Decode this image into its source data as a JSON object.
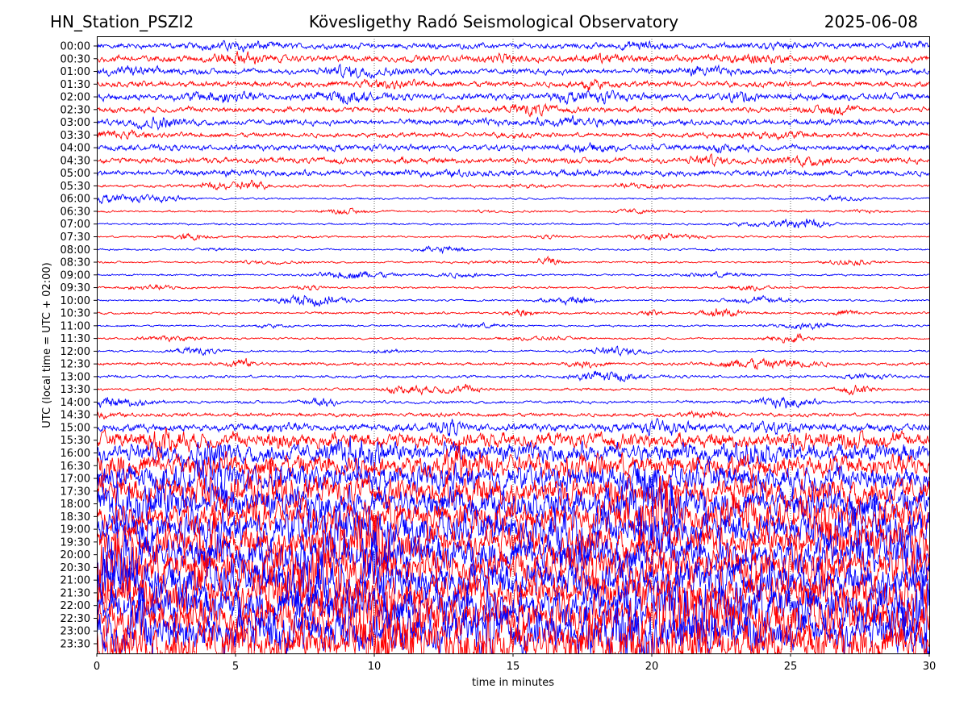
{
  "header": {
    "station": "HN_Station_PSZI2",
    "observatory": "Kövesligethy Radó Seismological Observatory",
    "date": "2025-06-08"
  },
  "chart_data": {
    "type": "line",
    "subtype": "seismogram-dayplot",
    "xlabel": "time in minutes",
    "ylabel": "UTC (local time = UTC + 02:00)",
    "xlim": [
      0,
      30
    ],
    "xticks": [
      "0",
      "5",
      "10",
      "15",
      "20",
      "25",
      "30"
    ],
    "grid": "vertical dotted at 5-minute intervals",
    "colors": [
      "#0000ff",
      "#ff0000"
    ],
    "rows": [
      "00:00",
      "00:30",
      "01:00",
      "01:30",
      "02:00",
      "02:30",
      "03:00",
      "03:30",
      "04:00",
      "04:30",
      "05:00",
      "05:30",
      "06:00",
      "06:30",
      "07:00",
      "07:30",
      "08:00",
      "08:30",
      "09:00",
      "09:30",
      "10:00",
      "10:30",
      "11:00",
      "11:30",
      "12:00",
      "12:30",
      "13:00",
      "13:30",
      "14:00",
      "14:30",
      "15:00",
      "15:30",
      "16:00",
      "16:30",
      "17:00",
      "17:30",
      "18:00",
      "18:30",
      "19:00",
      "19:30",
      "20:00",
      "20:30",
      "21:00",
      "21:30",
      "22:00",
      "22:30",
      "23:00",
      "23:30"
    ],
    "relative_amplitude": [
      3,
      3.5,
      3,
      3,
      3.5,
      3,
      3,
      2.5,
      3,
      3,
      3,
      1.5,
      1,
      1,
      1,
      1,
      1,
      1,
      1,
      1,
      1,
      1.2,
      1,
      1,
      1,
      1.5,
      1.5,
      1.2,
      1.5,
      2,
      4,
      8,
      10,
      12,
      14,
      15,
      16,
      17,
      18,
      18,
      19,
      20,
      20,
      20,
      21,
      22,
      22,
      22
    ]
  }
}
